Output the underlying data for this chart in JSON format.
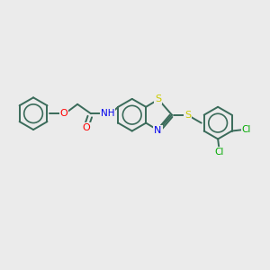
{
  "bg_color": "#ebebeb",
  "bond_color": "#3a6b5a",
  "atom_colors": {
    "O": "#ff0000",
    "N": "#0000ee",
    "S": "#cccc00",
    "Cl": "#00aa00",
    "C": "#3a6b5a",
    "H": "#3a6b5a"
  },
  "figsize": [
    3.0,
    3.0
  ],
  "dpi": 100,
  "lw": 1.4
}
